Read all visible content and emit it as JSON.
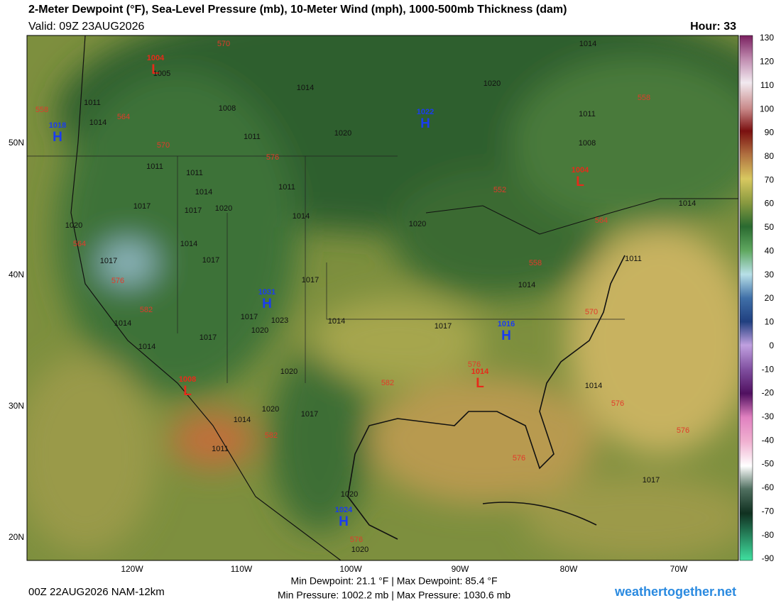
{
  "header": {
    "title": "2-Meter Dewpoint (°F), Sea-Level Pressure (mb), 10-Meter Wind (mph), 1000-500mb Thickness (dam)",
    "valid": "Valid: 09Z 23AUG2026",
    "hour": "Hour: 33"
  },
  "latitude_labels": [
    "50N",
    "40N",
    "30N",
    "20N"
  ],
  "longitude_labels": [
    "120W",
    "110W",
    "100W",
    "90W",
    "80W",
    "70W"
  ],
  "colorbar": {
    "labels": [
      "130",
      "120",
      "110",
      "100",
      "90",
      "80",
      "70",
      "60",
      "50",
      "40",
      "30",
      "20",
      "10",
      "0",
      "-10",
      "-20",
      "-30",
      "-40",
      "-50",
      "-60",
      "-70",
      "-80",
      "-90"
    ]
  },
  "pressure_centers": [
    {
      "letter": "L",
      "value": "1004"
    },
    {
      "letter": "H",
      "value": "1018"
    },
    {
      "letter": "H",
      "value": "1022"
    },
    {
      "letter": "L",
      "value": "1004"
    },
    {
      "letter": "H",
      "value": "1031"
    },
    {
      "letter": "H",
      "value": "1016"
    },
    {
      "letter": "L",
      "value": "1008"
    },
    {
      "letter": "L",
      "value": "1014"
    },
    {
      "letter": "H",
      "value": "1024"
    }
  ],
  "isobar_labels": [
    "1014",
    "1020",
    "1014",
    "1011",
    "1014",
    "1008",
    "1011",
    "1020",
    "1011",
    "1008",
    "1011",
    "1011",
    "1011",
    "1014",
    "1014",
    "1017",
    "1017",
    "1020",
    "1014",
    "1020",
    "1020",
    "1014",
    "1017",
    "1017",
    "1011",
    "1017",
    "1014",
    "1014",
    "1017",
    "1014",
    "1017",
    "1023",
    "1020",
    "1014",
    "1017",
    "1020",
    "1014",
    "1020",
    "1014",
    "1017",
    "1011",
    "1017",
    "1020",
    "1020",
    "1005"
  ],
  "thickness_labels": [
    "570",
    "558",
    "564",
    "570",
    "576",
    "552",
    "558",
    "564",
    "564",
    "576",
    "558",
    "570",
    "582",
    "576",
    "582",
    "576",
    "582",
    "576",
    "576",
    "576"
  ],
  "footer": {
    "run": "00Z 22AUG2026 NAM-12km",
    "dewpoint_range": "Min Dewpoint:  21.1 °F | Max Dewpoint:  85.4 °F",
    "pressure_range": "Min Pressure: 1002.2 mb | Max Pressure: 1030.6 mb",
    "site": "weathertogether.net"
  }
}
